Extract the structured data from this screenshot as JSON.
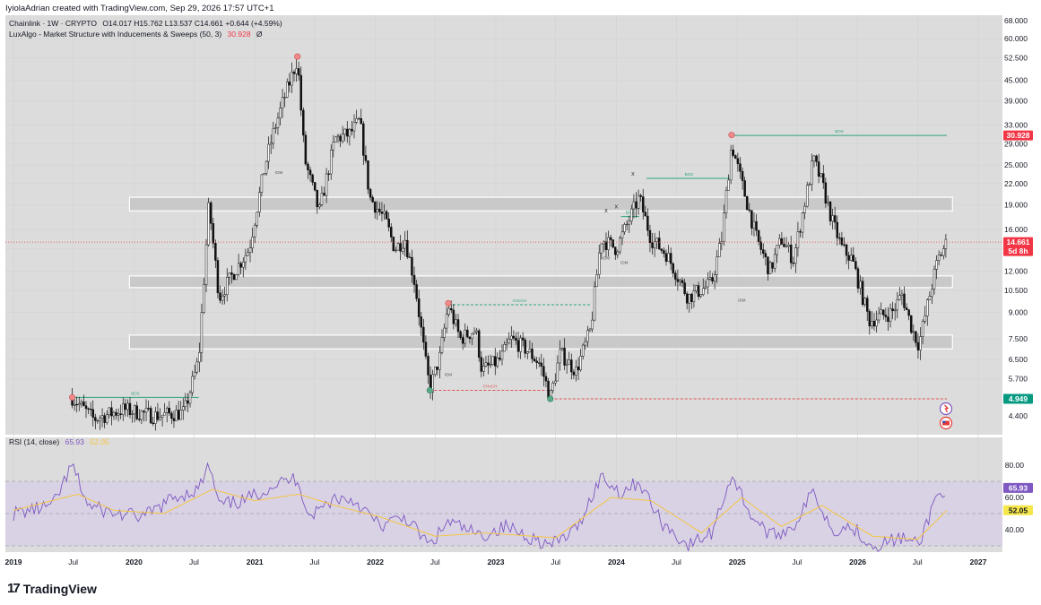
{
  "header": {
    "created_by": "IyiolaAdrian created with TradingView.com, Sep 29, 2026 17:57 UTC+1"
  },
  "legend": {
    "symbol": "Chainlink · 1W · CRYPTO",
    "ohlc": "O14.017 H15.762 L13.537 C14.661 +0.644 (+4.59%)",
    "indicator": "LuxAlgo - Market Structure with Inducements & Sweeps (50, 3)",
    "indicator_value": "30.928",
    "indicator_suffix": "Ø",
    "rsi_label": "RSI (14, close)",
    "rsi_value": "65.93",
    "rsi_ma_value": "52.05"
  },
  "badges": {
    "top_level": "30.928",
    "last_price": "14.661",
    "countdown": "5d 8h",
    "low_level": "4.949",
    "rsi": "65.93",
    "rsi_ma": "52.05"
  },
  "colors": {
    "bg": "#dcdcdc",
    "candle": "#111111",
    "bos": "#2ea37d",
    "choch": "#e05555",
    "rsi_line": "#7e57c2",
    "rsi_ma": "#f5c542",
    "rsi_band": "#d7d0e6",
    "badge_red": "#f23645",
    "badge_green": "#089981",
    "badge_yellow": "#f5e64a"
  },
  "footer": {
    "brand": "TradingView"
  },
  "chart_data": {
    "type": "candlestick",
    "scale": "log",
    "price_axis": [
      "68.000",
      "60.000",
      "52.500",
      "45.000",
      "39.000",
      "33.000",
      "29.000",
      "25.000",
      "22.000",
      "19.000",
      "16.000",
      "14.000",
      "12.000",
      "10.500",
      "9.000",
      "7.500",
      "6.500",
      "5.700",
      "4.400"
    ],
    "rsi_axis": [
      "80.00",
      "60.00",
      "40.00"
    ],
    "time_axis": [
      {
        "label": "2019",
        "date": "2019-01-01"
      },
      {
        "label": "Jul",
        "date": "2019-07-01"
      },
      {
        "label": "2020",
        "date": "2020-01-01"
      },
      {
        "label": "Jul",
        "date": "2020-07-01"
      },
      {
        "label": "2021",
        "date": "2021-01-01"
      },
      {
        "label": "Jul",
        "date": "2021-07-01"
      },
      {
        "label": "2022",
        "date": "2022-01-01"
      },
      {
        "label": "Jul",
        "date": "2022-07-01"
      },
      {
        "label": "2023",
        "date": "2023-01-01"
      },
      {
        "label": "Jul",
        "date": "2023-07-01"
      },
      {
        "label": "2024",
        "date": "2024-01-01"
      },
      {
        "label": "Jul",
        "date": "2024-07-01"
      },
      {
        "label": "2025",
        "date": "2025-01-01"
      },
      {
        "label": "Jul",
        "date": "2025-07-01"
      },
      {
        "label": "2026",
        "date": "2026-01-01"
      },
      {
        "label": "Jul",
        "date": "2026-07-01"
      },
      {
        "label": "2027",
        "date": "2027-01-01"
      }
    ],
    "price_path": [
      [
        "2019-06-28",
        5.0
      ],
      [
        "2019-09-01",
        4.3
      ],
      [
        "2019-12-01",
        4.6
      ],
      [
        "2020-03-01",
        4.4
      ],
      [
        "2020-06-01",
        4.5
      ],
      [
        "2020-07-15",
        6.5
      ],
      [
        "2020-08-15",
        19.0
      ],
      [
        "2020-09-15",
        10.0
      ],
      [
        "2020-11-01",
        12.0
      ],
      [
        "2020-12-15",
        14.0
      ],
      [
        "2021-02-01",
        25.0
      ],
      [
        "2021-03-01",
        32.0
      ],
      [
        "2021-04-01",
        40.0
      ],
      [
        "2021-05-10",
        52.0
      ],
      [
        "2021-06-01",
        26.0
      ],
      [
        "2021-07-15",
        18.0
      ],
      [
        "2021-09-01",
        30.0
      ],
      [
        "2021-10-15",
        31.0
      ],
      [
        "2021-11-15",
        34.0
      ],
      [
        "2021-12-15",
        20.0
      ],
      [
        "2022-02-01",
        17.0
      ],
      [
        "2022-03-01",
        14.0
      ],
      [
        "2022-04-01",
        15.0
      ],
      [
        "2022-05-01",
        11.0
      ],
      [
        "2022-06-01",
        6.5
      ],
      [
        "2022-06-15",
        5.3
      ],
      [
        "2022-07-15",
        6.6
      ],
      [
        "2022-08-10",
        9.5
      ],
      [
        "2022-09-15",
        7.5
      ],
      [
        "2022-11-01",
        8.0
      ],
      [
        "2022-11-20",
        6.0
      ],
      [
        "2023-01-15",
        6.5
      ],
      [
        "2023-02-15",
        7.5
      ],
      [
        "2023-04-01",
        7.0
      ],
      [
        "2023-05-15",
        6.3
      ],
      [
        "2023-06-15",
        5.0
      ],
      [
        "2023-07-15",
        6.8
      ],
      [
        "2023-09-01",
        6.0
      ],
      [
        "2023-10-15",
        8.0
      ],
      [
        "2023-11-15",
        15.0
      ],
      [
        "2024-01-01",
        14.0
      ],
      [
        "2024-03-10",
        20.0
      ],
      [
        "2024-04-15",
        15.0
      ],
      [
        "2024-06-01",
        13.5
      ],
      [
        "2024-08-05",
        10.0
      ],
      [
        "2024-10-15",
        11.0
      ],
      [
        "2024-11-15",
        15.0
      ],
      [
        "2024-12-15",
        29.0
      ],
      [
        "2025-01-15",
        22.0
      ],
      [
        "2025-03-01",
        15.0
      ],
      [
        "2025-04-10",
        12.0
      ],
      [
        "2025-05-15",
        15.0
      ],
      [
        "2025-06-20",
        13.0
      ],
      [
        "2025-08-20",
        26.0
      ],
      [
        "2025-09-15",
        22.0
      ],
      [
        "2025-10-15",
        17.0
      ],
      [
        "2025-11-15",
        14.0
      ],
      [
        "2025-12-15",
        13.0
      ],
      [
        "2026-02-05",
        8.5
      ],
      [
        "2026-03-15",
        8.8
      ],
      [
        "2026-04-15",
        9.0
      ],
      [
        "2026-05-15",
        10.2
      ],
      [
        "2026-06-15",
        8.0
      ],
      [
        "2026-07-05",
        7.2
      ],
      [
        "2026-08-10",
        10.5
      ],
      [
        "2026-09-01",
        13.0
      ],
      [
        "2026-09-28",
        14.661
      ]
    ],
    "rsi_path": [
      [
        "2019-01-01",
        50
      ],
      [
        "2019-05-01",
        55
      ],
      [
        "2019-06-28",
        80
      ],
      [
        "2019-08-15",
        55
      ],
      [
        "2019-11-01",
        50
      ],
      [
        "2020-02-01",
        48
      ],
      [
        "2020-05-01",
        60
      ],
      [
        "2020-07-15",
        65
      ],
      [
        "2020-08-15",
        80
      ],
      [
        "2020-09-15",
        55
      ],
      [
        "2020-12-01",
        58
      ],
      [
        "2021-03-01",
        68
      ],
      [
        "2021-05-10",
        72
      ],
      [
        "2021-06-15",
        48
      ],
      [
        "2021-09-01",
        60
      ],
      [
        "2021-11-01",
        58
      ],
      [
        "2022-01-15",
        42
      ],
      [
        "2022-04-01",
        48
      ],
      [
        "2022-06-15",
        30
      ],
      [
        "2022-08-10",
        45
      ],
      [
        "2022-11-15",
        36
      ],
      [
        "2023-02-01",
        42
      ],
      [
        "2023-06-15",
        30
      ],
      [
        "2023-09-01",
        40
      ],
      [
        "2023-11-15",
        73
      ],
      [
        "2024-01-15",
        63
      ],
      [
        "2024-03-10",
        70
      ],
      [
        "2024-05-15",
        45
      ],
      [
        "2024-08-05",
        30
      ],
      [
        "2024-10-15",
        38
      ],
      [
        "2024-12-15",
        74
      ],
      [
        "2025-02-15",
        48
      ],
      [
        "2025-04-15",
        36
      ],
      [
        "2025-06-20",
        42
      ],
      [
        "2025-08-20",
        64
      ],
      [
        "2025-10-15",
        40
      ],
      [
        "2025-12-15",
        42
      ],
      [
        "2026-02-15",
        30
      ],
      [
        "2026-05-15",
        35
      ],
      [
        "2026-07-05",
        30
      ],
      [
        "2026-08-25",
        60
      ],
      [
        "2026-09-28",
        65.93
      ]
    ],
    "rsi_ma_path": [
      [
        "2019-01-01",
        52
      ],
      [
        "2019-07-15",
        62
      ],
      [
        "2019-11-01",
        52
      ],
      [
        "2020-04-01",
        50
      ],
      [
        "2020-08-25",
        65
      ],
      [
        "2021-01-01",
        58
      ],
      [
        "2021-05-15",
        62
      ],
      [
        "2021-09-01",
        55
      ],
      [
        "2022-01-15",
        48
      ],
      [
        "2022-07-01",
        36
      ],
      [
        "2022-12-01",
        38
      ],
      [
        "2023-07-01",
        35
      ],
      [
        "2023-12-15",
        60
      ],
      [
        "2024-04-15",
        58
      ],
      [
        "2024-09-15",
        38
      ],
      [
        "2025-01-15",
        60
      ],
      [
        "2025-05-15",
        42
      ],
      [
        "2025-09-15",
        55
      ],
      [
        "2026-02-15",
        36
      ],
      [
        "2026-07-01",
        34
      ],
      [
        "2026-09-28",
        52.05
      ]
    ],
    "zones": [
      {
        "top": 20.0,
        "bottom": 18.2,
        "from": "2020-01-01",
        "to": "2026-10-15"
      },
      {
        "top": 11.6,
        "bottom": 10.7,
        "from": "2020-01-01",
        "to": "2026-10-15"
      },
      {
        "top": 7.7,
        "bottom": 7.0,
        "from": "2020-01-01",
        "to": "2026-10-15"
      }
    ],
    "structure_lines": [
      {
        "label": "BOS",
        "price": 5.0,
        "from": "2019-06-28",
        "to": "2020-07-15",
        "style": "solid",
        "color": "bos"
      },
      {
        "label": "BOS",
        "price": 30.7,
        "from": "2024-12-15",
        "to": "2026-09-28",
        "style": "solid",
        "color": "bos"
      },
      {
        "label": "BOS",
        "price": 22.8,
        "from": "2024-04-01",
        "to": "2024-12-15",
        "style": "solid",
        "color": "bos"
      },
      {
        "label": "BOS",
        "price": 17.5,
        "from": "2024-01-15",
        "to": "2024-03-10",
        "style": "solid",
        "color": "bos"
      },
      {
        "label": "CHoCH",
        "price": 9.5,
        "from": "2022-08-10",
        "to": "2023-10-15",
        "style": "dashed",
        "color": "bos"
      },
      {
        "label": "CHoCH",
        "price": 5.25,
        "from": "2022-06-15",
        "to": "2023-06-15",
        "style": "dashed",
        "color": "choch"
      },
      {
        "label": "",
        "price": 4.95,
        "from": "2023-06-15",
        "to": "2026-09-28",
        "style": "dashed",
        "color": "choch"
      }
    ],
    "idm_labels": [
      {
        "label": "IDM",
        "date": "2021-03-15",
        "price": 23.5
      },
      {
        "label": "IDM",
        "date": "2022-08-10",
        "price": 5.8
      },
      {
        "label": "IDM",
        "date": "2023-12-01",
        "price": 13.0
      },
      {
        "label": "IDM",
        "date": "2024-01-25",
        "price": 12.6
      },
      {
        "label": "IDM",
        "date": "2025-01-15",
        "price": 9.7
      }
    ],
    "sweep_marks": [
      {
        "label": "x",
        "date": "2023-12-01",
        "price": 18.0
      },
      {
        "label": "x",
        "date": "2024-01-01",
        "price": 18.5
      },
      {
        "label": "x",
        "date": "2024-02-20",
        "price": 23.2
      }
    ],
    "swing_points": [
      {
        "date": "2019-06-28",
        "price": 5.0,
        "kind": "high"
      },
      {
        "date": "2021-05-10",
        "price": 53.0,
        "kind": "high"
      },
      {
        "date": "2022-08-10",
        "price": 9.6,
        "kind": "high"
      },
      {
        "date": "2024-12-15",
        "price": 30.8,
        "kind": "high"
      },
      {
        "date": "2022-06-15",
        "price": 5.25,
        "kind": "low"
      },
      {
        "date": "2023-06-15",
        "price": 4.95,
        "kind": "low"
      }
    ],
    "current_price": 14.661
  }
}
